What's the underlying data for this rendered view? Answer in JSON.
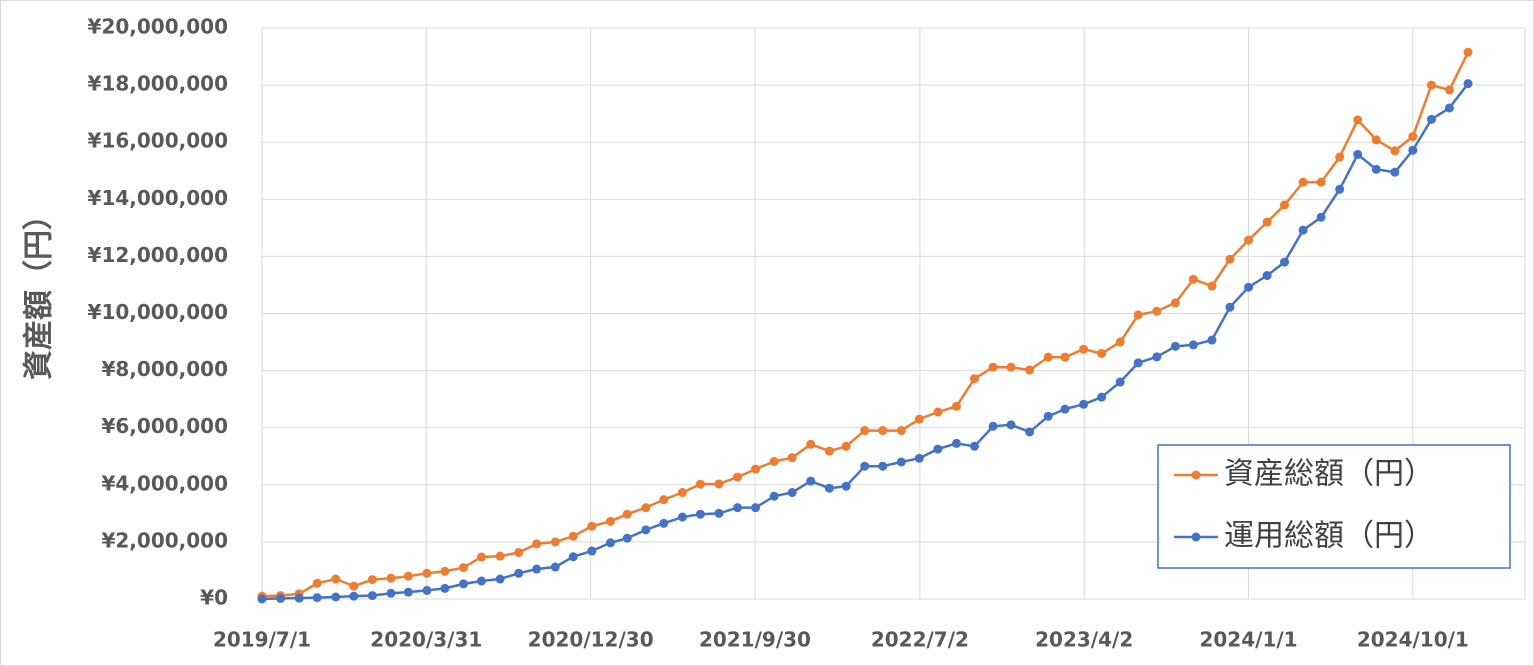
{
  "chart_data": {
    "type": "line",
    "y_label": "資産額（円）",
    "x": [
      "2019/7/1",
      "2019/8/1",
      "2019/9/1",
      "2019/10/1",
      "2019/11/1",
      "2019/12/1",
      "2020/1/1",
      "2020/2/1",
      "2020/3/1",
      "2020/4/1",
      "2020/5/1",
      "2020/6/1",
      "2020/7/1",
      "2020/8/1",
      "2020/9/1",
      "2020/10/1",
      "2020/11/1",
      "2020/12/1",
      "2021/1/1",
      "2021/2/1",
      "2021/3/1",
      "2021/4/1",
      "2021/5/1",
      "2021/6/1",
      "2021/7/1",
      "2021/8/1",
      "2021/9/1",
      "2021/10/1",
      "2021/11/1",
      "2021/12/1",
      "2022/1/1",
      "2022/2/1",
      "2022/3/1",
      "2022/4/1",
      "2022/5/1",
      "2022/6/1",
      "2022/7/1",
      "2022/8/1",
      "2022/9/1",
      "2022/10/1",
      "2022/11/1",
      "2022/12/1",
      "2023/1/1",
      "2023/2/1",
      "2023/3/1",
      "2023/4/1",
      "2023/5/1",
      "2023/6/1",
      "2023/7/1",
      "2023/8/1",
      "2023/9/1",
      "2023/10/1",
      "2023/11/1",
      "2023/12/1",
      "2024/1/1",
      "2024/2/1",
      "2024/3/1",
      "2024/4/1",
      "2024/5/1",
      "2024/6/1",
      "2024/7/1",
      "2024/8/1",
      "2024/9/1",
      "2024/10/1",
      "2024/11/1",
      "2024/12/1",
      "2025/1/1"
    ],
    "series": [
      {
        "name": "資産総額（円）",
        "color": "#ed7d31",
        "values": [
          100000,
          120000,
          180000,
          550000,
          700000,
          450000,
          680000,
          730000,
          800000,
          900000,
          970000,
          1100000,
          1470000,
          1500000,
          1630000,
          1930000,
          2000000,
          2200000,
          2550000,
          2720000,
          2970000,
          3200000,
          3480000,
          3730000,
          4020000,
          4030000,
          4270000,
          4550000,
          4820000,
          4950000,
          5420000,
          5180000,
          5350000,
          5900000,
          5900000,
          5900000,
          6300000,
          6550000,
          6750000,
          7720000,
          8120000,
          8120000,
          8020000,
          8470000,
          8470000,
          8750000,
          8600000,
          9000000,
          9950000,
          10080000,
          10370000,
          11200000,
          10960000,
          11900000,
          12570000,
          13200000,
          13800000,
          14600000,
          14600000,
          15480000,
          16780000,
          16080000,
          15700000,
          16200000,
          18000000,
          17830000,
          19150000
        ]
      },
      {
        "name": "運用総額（円）",
        "color": "#4472c4",
        "values": [
          0,
          20000,
          30000,
          50000,
          70000,
          100000,
          120000,
          200000,
          240000,
          300000,
          370000,
          530000,
          630000,
          700000,
          900000,
          1050000,
          1120000,
          1480000,
          1680000,
          1970000,
          2130000,
          2420000,
          2650000,
          2870000,
          2970000,
          3000000,
          3200000,
          3200000,
          3600000,
          3730000,
          4130000,
          3880000,
          3950000,
          4650000,
          4650000,
          4800000,
          4930000,
          5250000,
          5450000,
          5350000,
          6050000,
          6100000,
          5850000,
          6400000,
          6650000,
          6820000,
          7070000,
          7600000,
          8270000,
          8480000,
          8850000,
          8900000,
          9070000,
          10220000,
          10920000,
          11330000,
          11800000,
          12920000,
          13370000,
          14350000,
          15570000,
          15050000,
          14950000,
          15720000,
          16800000,
          17200000,
          18050000
        ]
      }
    ],
    "xlim": [
      "2019/7/1",
      "2025/4/6"
    ],
    "xticks": [
      "2019/7/1",
      "2020/3/31",
      "2020/12/30",
      "2021/9/30",
      "2022/7/2",
      "2023/4/2",
      "2024/1/1",
      "2024/10/1"
    ],
    "ylim": [
      0,
      20000000
    ],
    "yticks": [
      {
        "value": 0,
        "label": "¥0"
      },
      {
        "value": 2000000,
        "label": "¥2,000,000"
      },
      {
        "value": 4000000,
        "label": "¥4,000,000"
      },
      {
        "value": 6000000,
        "label": "¥6,000,000"
      },
      {
        "value": 8000000,
        "label": "¥8,000,000"
      },
      {
        "value": 10000000,
        "label": "¥10,000,000"
      },
      {
        "value": 12000000,
        "label": "¥12,000,000"
      },
      {
        "value": 14000000,
        "label": "¥14,000,000"
      },
      {
        "value": 16000000,
        "label": "¥16,000,000"
      },
      {
        "value": 18000000,
        "label": "¥18,000,000"
      },
      {
        "value": 20000000,
        "label": "¥20,000,000"
      }
    ],
    "grid": true,
    "legend": "lower right"
  }
}
